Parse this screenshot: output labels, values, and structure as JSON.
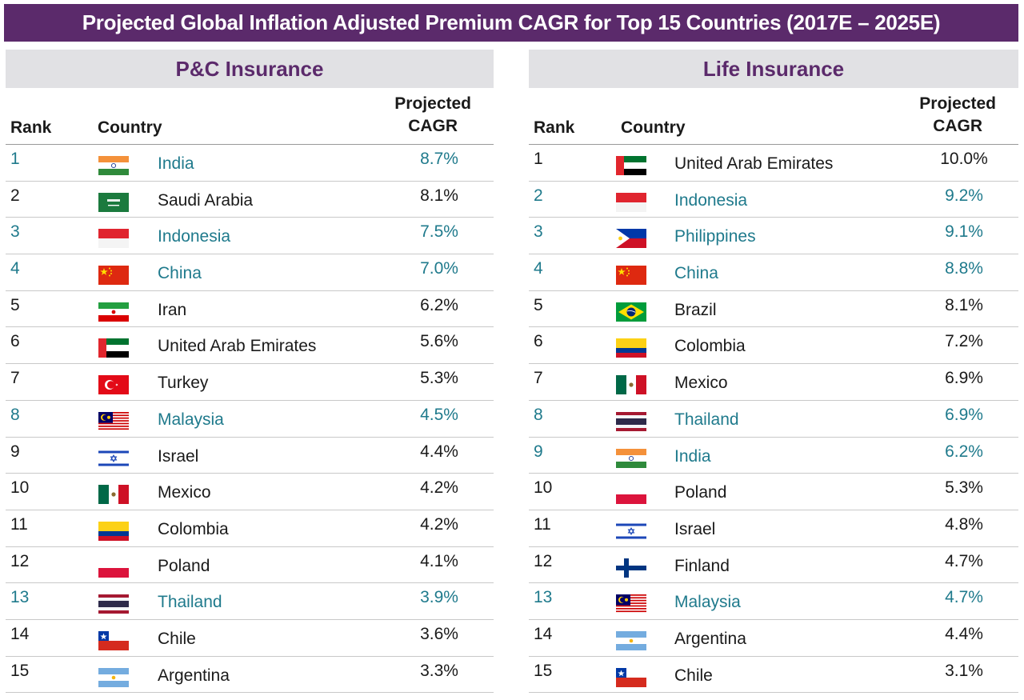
{
  "title": "Projected Global Inflation Adjusted Premium CAGR for Top 15 Countries (2017E – 2025E)",
  "colors": {
    "title_bg": "#5b2a6b",
    "header_bg": "#e1e1e4",
    "highlight": "#1f7a8c"
  },
  "pc": {
    "header": "P&C Insurance",
    "col_rank": "Rank",
    "col_country": "Country",
    "col_cagr_line1": "Projected",
    "col_cagr_line2": "CAGR",
    "rows": [
      {
        "rank": "1",
        "country": "India",
        "cagr": "8.7%",
        "flag": "india",
        "highlight": true
      },
      {
        "rank": "2",
        "country": "Saudi Arabia",
        "cagr": "8.1%",
        "flag": "saudi",
        "highlight": false
      },
      {
        "rank": "3",
        "country": "Indonesia",
        "cagr": "7.5%",
        "flag": "indonesia",
        "highlight": true
      },
      {
        "rank": "4",
        "country": "China",
        "cagr": "7.0%",
        "flag": "china",
        "highlight": true
      },
      {
        "rank": "5",
        "country": "Iran",
        "cagr": "6.2%",
        "flag": "iran",
        "highlight": false
      },
      {
        "rank": "6",
        "country": "United Arab Emirates",
        "cagr": "5.6%",
        "flag": "uae",
        "highlight": false
      },
      {
        "rank": "7",
        "country": "Turkey",
        "cagr": "5.3%",
        "flag": "turkey",
        "highlight": false
      },
      {
        "rank": "8",
        "country": "Malaysia",
        "cagr": "4.5%",
        "flag": "malaysia",
        "highlight": true
      },
      {
        "rank": "9",
        "country": "Israel",
        "cagr": "4.4%",
        "flag": "israel",
        "highlight": false
      },
      {
        "rank": "10",
        "country": "Mexico",
        "cagr": "4.2%",
        "flag": "mexico",
        "highlight": false
      },
      {
        "rank": "11",
        "country": "Colombia",
        "cagr": "4.2%",
        "flag": "colombia",
        "highlight": false
      },
      {
        "rank": "12",
        "country": "Poland",
        "cagr": "4.1%",
        "flag": "poland",
        "highlight": false
      },
      {
        "rank": "13",
        "country": "Thailand",
        "cagr": "3.9%",
        "flag": "thailand",
        "highlight": true
      },
      {
        "rank": "14",
        "country": "Chile",
        "cagr": "3.6%",
        "flag": "chile",
        "highlight": false
      },
      {
        "rank": "15",
        "country": "Argentina",
        "cagr": "3.3%",
        "flag": "argentina",
        "highlight": false
      }
    ]
  },
  "life": {
    "header": "Life Insurance",
    "col_rank": "Rank",
    "col_country": "Country",
    "col_cagr_line1": "Projected",
    "col_cagr_line2": "CAGR",
    "rows": [
      {
        "rank": "1",
        "country": "United Arab Emirates",
        "cagr": "10.0%",
        "flag": "uae",
        "highlight": false
      },
      {
        "rank": "2",
        "country": "Indonesia",
        "cagr": "9.2%",
        "flag": "indonesia",
        "highlight": true
      },
      {
        "rank": "3",
        "country": "Philippines",
        "cagr": "9.1%",
        "flag": "philippines",
        "highlight": true
      },
      {
        "rank": "4",
        "country": "China",
        "cagr": "8.8%",
        "flag": "china",
        "highlight": true
      },
      {
        "rank": "5",
        "country": "Brazil",
        "cagr": "8.1%",
        "flag": "brazil",
        "highlight": false
      },
      {
        "rank": "6",
        "country": "Colombia",
        "cagr": "7.2%",
        "flag": "colombia",
        "highlight": false
      },
      {
        "rank": "7",
        "country": "Mexico",
        "cagr": "6.9%",
        "flag": "mexico",
        "highlight": false
      },
      {
        "rank": "8",
        "country": "Thailand",
        "cagr": "6.9%",
        "flag": "thailand",
        "highlight": true
      },
      {
        "rank": "9",
        "country": "India",
        "cagr": "6.2%",
        "flag": "india",
        "highlight": true
      },
      {
        "rank": "10",
        "country": "Poland",
        "cagr": "5.3%",
        "flag": "poland",
        "highlight": false
      },
      {
        "rank": "11",
        "country": "Israel",
        "cagr": "4.8%",
        "flag": "israel",
        "highlight": false
      },
      {
        "rank": "12",
        "country": "Finland",
        "cagr": "4.7%",
        "flag": "finland",
        "highlight": false
      },
      {
        "rank": "13",
        "country": "Malaysia",
        "cagr": "4.7%",
        "flag": "malaysia",
        "highlight": true
      },
      {
        "rank": "14",
        "country": "Argentina",
        "cagr": "4.4%",
        "flag": "argentina",
        "highlight": false
      },
      {
        "rank": "15",
        "country": "Chile",
        "cagr": "3.1%",
        "flag": "chile",
        "highlight": false
      }
    ]
  }
}
